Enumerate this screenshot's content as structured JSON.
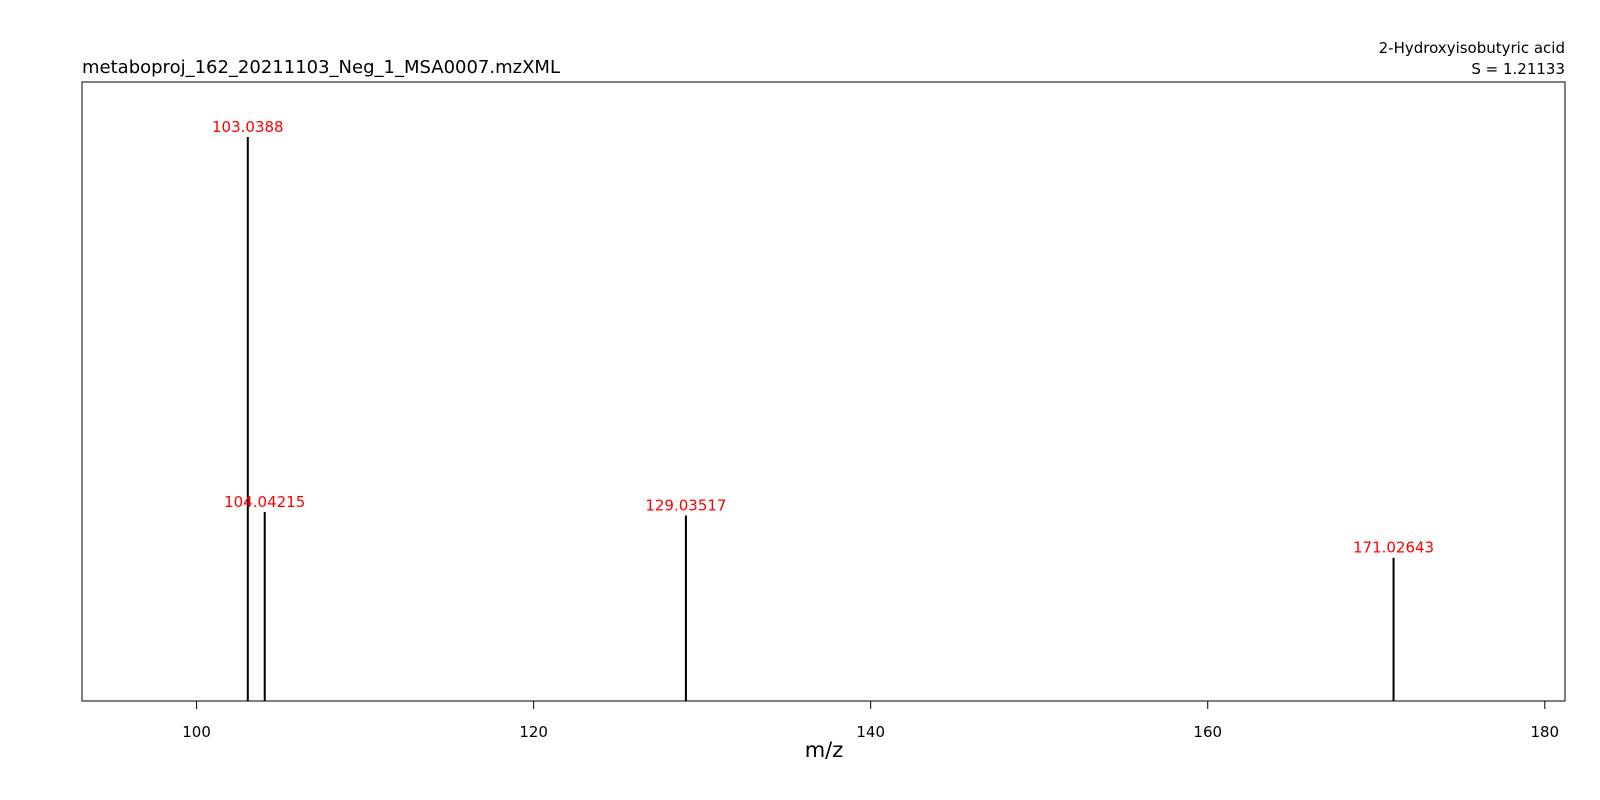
{
  "chart_data": {
    "type": "bar",
    "subtype": "mass-spectrum-stick",
    "title": "metaboproj_162_20211103_Neg_1_MSA0007.mzXML",
    "compound": "2-Hydroxyisobutyric acid",
    "score": "S = 1.21133",
    "xlabel": "m/z",
    "ylabel": "",
    "xlim": [
      93.2,
      181.2
    ],
    "ylim": [
      0,
      100
    ],
    "xticks": [
      100,
      120,
      140,
      160,
      180
    ],
    "grid": false,
    "legend": "none",
    "peaks": [
      {
        "mz": 103.0388,
        "label": "103.0388",
        "intensity": 100
      },
      {
        "mz": 104.04215,
        "label": "104.04215",
        "intensity": 33.5
      },
      {
        "mz": 129.03517,
        "label": "129.03517",
        "intensity": 32.9
      },
      {
        "mz": 171.02643,
        "label": "171.02643",
        "intensity": 25.4
      }
    ],
    "colors": {
      "stick": "#000000",
      "peak_label": "#ff0000",
      "axis": "#000000"
    }
  }
}
